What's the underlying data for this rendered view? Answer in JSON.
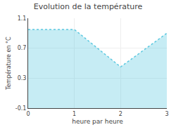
{
  "chart_data": {
    "type": "area",
    "title": "Evolution de la température",
    "x_label": "heure par heure",
    "y_label": "Température en °C",
    "x": [
      0,
      1,
      2,
      3
    ],
    "values": [
      0.95,
      0.95,
      0.45,
      0.9
    ],
    "color": "#5bc8e0",
    "line_style": "dotted",
    "xlim": [
      0,
      3
    ],
    "xticks": [
      0,
      1,
      2,
      3
    ],
    "ylim": [
      -0.1,
      1.1
    ],
    "yticks": [
      -0.1,
      0.3,
      0.7,
      1.1
    ],
    "grid": true
  }
}
